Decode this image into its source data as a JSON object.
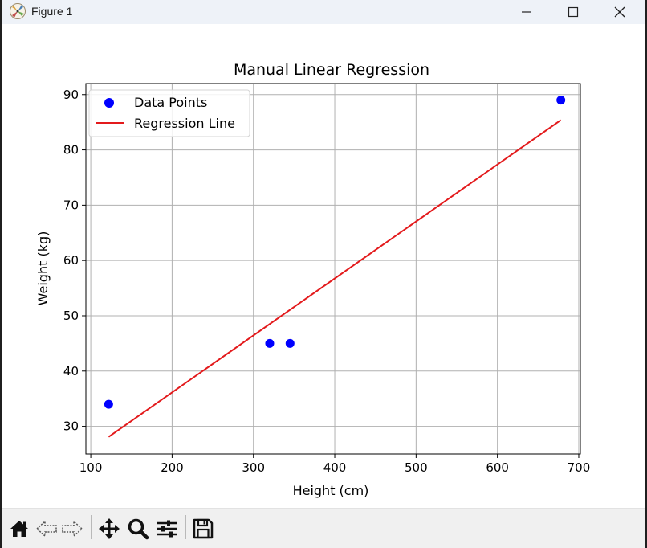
{
  "window": {
    "title": "Figure 1",
    "icon": "matplotlib-figure-icon"
  },
  "toolbar": {
    "buttons": [
      {
        "name": "home-button",
        "icon": "home-icon"
      },
      {
        "name": "back-button",
        "icon": "back-arrow-icon"
      },
      {
        "name": "forward-button",
        "icon": "forward-arrow-icon"
      },
      {
        "name": "pan-button",
        "icon": "move-icon"
      },
      {
        "name": "zoom-button",
        "icon": "magnifier-icon"
      },
      {
        "name": "configure-subplots-button",
        "icon": "sliders-icon"
      },
      {
        "name": "save-button",
        "icon": "floppy-disk-icon"
      }
    ]
  },
  "chart_data": {
    "type": "scatter",
    "title": "Manual Linear Regression",
    "xlabel": "Height (cm)",
    "ylabel": "Weight (kg)",
    "xlim": [
      94,
      702
    ],
    "ylim": [
      25,
      92
    ],
    "xticks": [
      100,
      200,
      300,
      400,
      500,
      600,
      700
    ],
    "yticks": [
      30,
      40,
      50,
      60,
      70,
      80,
      90
    ],
    "grid": true,
    "legend_position": "top-left",
    "series": [
      {
        "name": "Data Points",
        "kind": "scatter",
        "color": "#0000ff",
        "points": [
          [
            122,
            34
          ],
          [
            320,
            45
          ],
          [
            345,
            45
          ],
          [
            678,
            89
          ]
        ]
      },
      {
        "name": "Regression Line",
        "kind": "line",
        "color": "#e31a1c",
        "points": [
          [
            122,
            28.1
          ],
          [
            678,
            85.4
          ]
        ]
      }
    ]
  }
}
